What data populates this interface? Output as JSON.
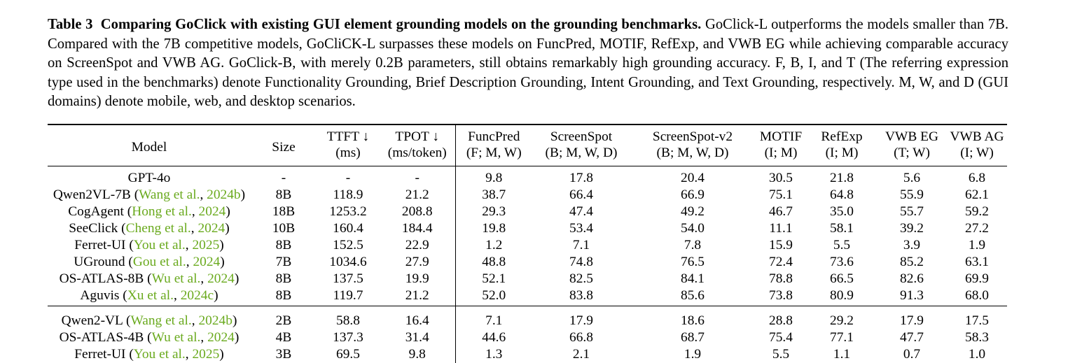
{
  "caption": {
    "label": "Table 3",
    "bold_title": "Comparing GoClick with existing GUI element grounding models on the grounding benchmarks.",
    "body": "GoClick-L outperforms the models smaller than 7B. Compared with the 7B competitive models, GoCliCK-L surpasses these models on FuncPred, MOTIF, RefExp, and VWB EG while achieving comparable accuracy on ScreenSpot and VWB AG. GoClick-B, with merely 0.2B parameters, still obtains remarkably high grounding accuracy. F, B, I, and T (The referring expression type used in the benchmarks) denote Functionality Grounding, Brief Description Grounding, Intent Grounding, and Text Grounding, respectively. M, W, and D (GUI domains) denote mobile, web, and desktop scenarios."
  },
  "table": {
    "columns": [
      {
        "line1": "Model",
        "line2": ""
      },
      {
        "line1": "Size",
        "line2": ""
      },
      {
        "line1": "TTFT ↓",
        "line2": "(ms)"
      },
      {
        "line1": "TPOT ↓",
        "line2": "(ms/token)"
      },
      {
        "line1": "FuncPred",
        "line2": "(F; M, W)"
      },
      {
        "line1": "ScreenSpot",
        "line2": "(B; M, W, D)"
      },
      {
        "line1": "ScreenSpot-v2",
        "line2": "(B; M, W, D)"
      },
      {
        "line1": "MOTIF",
        "line2": "(I; M)"
      },
      {
        "line1": "RefExp",
        "line2": "(I; M)"
      },
      {
        "line1": "VWB EG",
        "line2": "(T; W)"
      },
      {
        "line1": "VWB AG",
        "line2": "(I; W)"
      }
    ],
    "group1": [
      {
        "model": "GPT-4o",
        "cite_authors": "",
        "cite_year": "",
        "cells": [
          "-",
          "-",
          "-",
          "9.8",
          "17.8",
          "20.4",
          "30.5",
          "21.8",
          "5.6",
          "6.8"
        ]
      },
      {
        "model": "Qwen2VL-7B",
        "cite_authors": "Wang et al.",
        "cite_year": "2024b",
        "cells": [
          "8B",
          "118.9",
          "21.2",
          "38.7",
          "66.4",
          "66.9",
          "75.1",
          "64.8",
          "55.9",
          "62.1"
        ]
      },
      {
        "model": "CogAgent",
        "cite_authors": "Hong et al.",
        "cite_year": "2024",
        "cells": [
          "18B",
          "1253.2",
          "208.8",
          "29.3",
          "47.4",
          "49.2",
          "46.7",
          "35.0",
          "55.7",
          "59.2"
        ]
      },
      {
        "model": "SeeClick",
        "cite_authors": "Cheng et al.",
        "cite_year": "2024",
        "cells": [
          "10B",
          "160.4",
          "184.4",
          "19.8",
          "53.4",
          "54.0",
          "11.1",
          "58.1",
          "39.2",
          "27.2"
        ]
      },
      {
        "model": "Ferret-UI",
        "cite_authors": "You et al.",
        "cite_year": "2025",
        "cells": [
          "8B",
          "152.5",
          "22.9",
          "1.2",
          "7.1",
          "7.8",
          "15.9",
          "5.5",
          "3.9",
          "1.9"
        ]
      },
      {
        "model": "UGround",
        "cite_authors": "Gou et al.",
        "cite_year": "2024",
        "cells": [
          "7B",
          "1034.6",
          "27.9",
          "48.8",
          "74.8",
          "76.5",
          "72.4",
          "73.6",
          "85.2",
          "63.1"
        ]
      },
      {
        "model": "OS-ATLAS-8B",
        "cite_authors": "Wu et al.",
        "cite_year": "2024",
        "cells": [
          "8B",
          "137.5",
          "19.9",
          "52.1",
          "82.5",
          "84.1",
          "78.8",
          "66.5",
          "82.6",
          "69.9"
        ]
      },
      {
        "model": "Aguvis",
        "cite_authors": "Xu et al.",
        "cite_year": "2024c",
        "cells": [
          "8B",
          "119.7",
          "21.2",
          "52.0",
          "83.8",
          "85.6",
          "73.8",
          "80.9",
          "91.3",
          "68.0"
        ]
      }
    ],
    "group2": [
      {
        "model": "Qwen2-VL",
        "cite_authors": "Wang et al.",
        "cite_year": "2024b",
        "cells": [
          "2B",
          "58.8",
          "16.4",
          "7.1",
          "17.9",
          "18.6",
          "28.8",
          "29.2",
          "17.9",
          "17.5"
        ]
      },
      {
        "model": "OS-ATLAS-4B",
        "cite_authors": "Wu et al.",
        "cite_year": "2024",
        "cells": [
          "4B",
          "137.3",
          "31.4",
          "44.6",
          "66.8",
          "68.7",
          "75.4",
          "77.1",
          "47.7",
          "58.3"
        ]
      },
      {
        "model": "Ferret-UI",
        "cite_authors": "You et al.",
        "cite_year": "2025",
        "cells": [
          "3B",
          "69.5",
          "9.8",
          "1.3",
          "2.1",
          "1.9",
          "5.5",
          "1.1",
          "0.7",
          "1.0"
        ]
      }
    ]
  },
  "colors": {
    "citation": "#6aaa1e"
  }
}
